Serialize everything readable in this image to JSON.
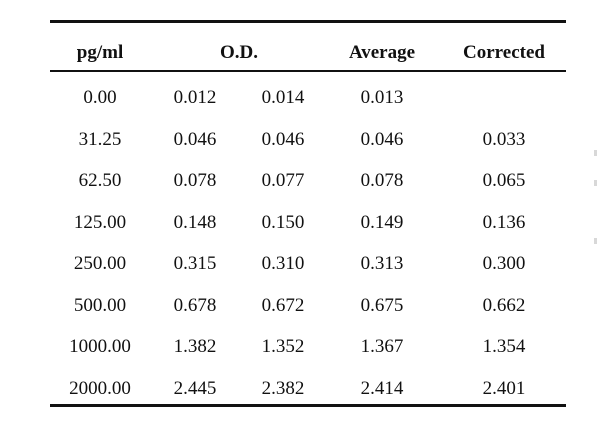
{
  "table": {
    "headers": {
      "concentration": "pg/ml",
      "od": "O.D.",
      "average": "Average",
      "corrected": "Corrected"
    },
    "rows": [
      {
        "conc": "0.00",
        "od1": "0.012",
        "od2": "0.014",
        "avg": "0.013",
        "corr": ""
      },
      {
        "conc": "31.25",
        "od1": "0.046",
        "od2": "0.046",
        "avg": "0.046",
        "corr": "0.033"
      },
      {
        "conc": "62.50",
        "od1": "0.078",
        "od2": "0.077",
        "avg": "0.078",
        "corr": "0.065"
      },
      {
        "conc": "125.00",
        "od1": "0.148",
        "od2": "0.150",
        "avg": "0.149",
        "corr": "0.136"
      },
      {
        "conc": "250.00",
        "od1": "0.315",
        "od2": "0.310",
        "avg": "0.313",
        "corr": "0.300"
      },
      {
        "conc": "500.00",
        "od1": "0.678",
        "od2": "0.672",
        "avg": "0.675",
        "corr": "0.662"
      },
      {
        "conc": "1000.00",
        "od1": "1.382",
        "od2": "1.352",
        "avg": "1.367",
        "corr": "1.354"
      },
      {
        "conc": "2000.00",
        "od1": "2.445",
        "od2": "2.382",
        "avg": "2.414",
        "corr": "2.401"
      }
    ]
  }
}
